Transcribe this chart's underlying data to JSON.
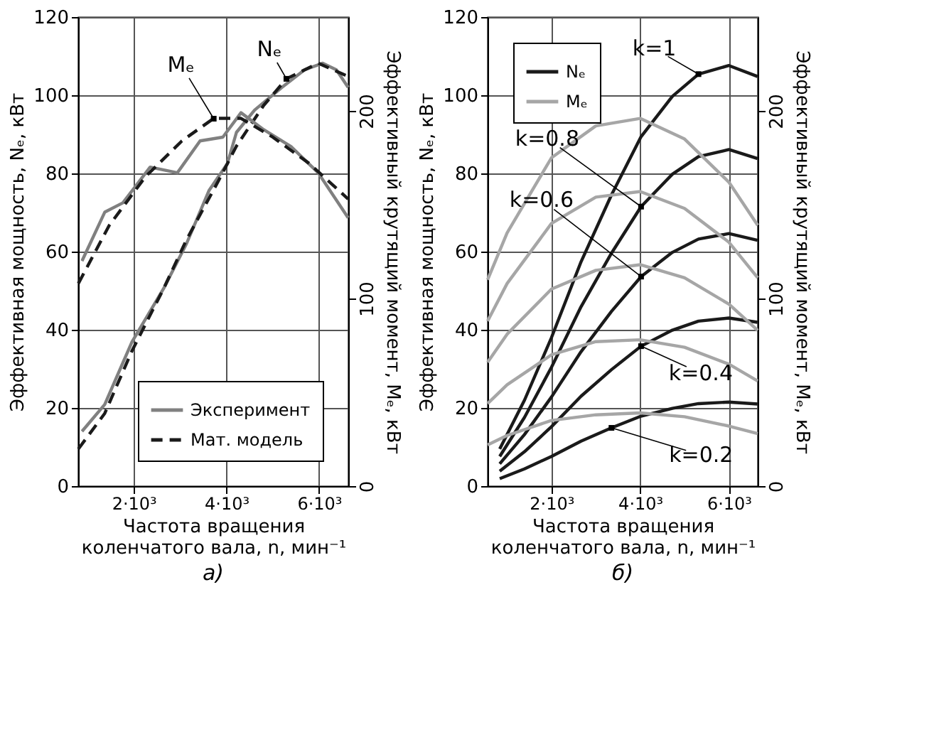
{
  "chart_data": [
    {
      "type": "line",
      "title": "а)",
      "xlabel": "Частота вращения\nколенчатого вала, n, мин⁻¹",
      "ylabel": "Эффективная мощность, Nₑ, кВт",
      "y2label": "Эффективный крутящий момент, Mₑ, кВт",
      "xlim": [
        800,
        6630
      ],
      "xticks": [
        {
          "value": 2000,
          "label": "2·10³"
        },
        {
          "value": 4000,
          "label": "4·10³"
        },
        {
          "value": 6000,
          "label": "6·10³"
        }
      ],
      "ylim": [
        0,
        120
      ],
      "yticks": [
        0,
        20,
        40,
        60,
        80,
        100,
        120
      ],
      "y2lim": [
        0,
        250
      ],
      "y2ticks": [
        0,
        100,
        200
      ],
      "grid": true,
      "legend": "bottom right",
      "annotations": [
        {
          "text": "Mₑ",
          "x": 3725,
          "y": 94
        },
        {
          "text": "Nₑ",
          "x": 5294,
          "y": 104.2
        }
      ],
      "series": [
        {
          "name": "Эксперимент",
          "color": "#808080",
          "line_style": "solid",
          "x": [
            882,
            1373,
            1961,
            2647,
            3137,
            3627,
            4020,
            4216,
            4608,
            5196,
            5686,
            6078,
            6373,
            6627
          ],
          "values": [
            14,
            20.9,
            36.9,
            50.6,
            62,
            75.7,
            82.5,
            90.5,
            96.2,
            102,
            106.5,
            108.2,
            106.5,
            102
          ]
        },
        {
          "name": "Мат. модель",
          "color": "#1a1a1a",
          "line_style": "dashed",
          "x": [
            804,
            1373,
            1961,
            2647,
            3137,
            3823,
            4216,
            4804,
            5294,
            5980,
            6627
          ],
          "values": [
            9.5,
            18.6,
            34.6,
            50.6,
            63,
            78,
            87,
            97.4,
            104.2,
            108.2,
            104.8
          ]
        },
        {
          "color": "#808080",
          "line_style": "solid",
          "axis": "y2",
          "x": [
            882,
            1373,
            1765,
            2353,
            2941,
            3431,
            3922,
            4314,
            4804,
            5392,
            5980,
            6627
          ],
          "values": [
            120,
            146,
            151,
            170,
            167,
            184,
            186,
            199,
            190,
            181,
            167,
            143
          ]
        },
        {
          "color": "#1a1a1a",
          "line_style": "dashed",
          "axis": "y2",
          "x": [
            804,
            1471,
            2255,
            3039,
            3725,
            4314,
            5000,
            5784,
            6627
          ],
          "values": [
            108,
            139,
            165,
            184,
            196,
            196,
            186,
            172,
            153
          ]
        }
      ]
    },
    {
      "type": "line",
      "title": "б)",
      "xlabel": "Частота вращения\nколенчатого вала, n, мин⁻¹",
      "ylabel": "Эффективная мощность, Nₑ, кВт",
      "y2label": "Эффективный крутящий момент, Mₑ, кВт",
      "xlim": [
        560,
        6650
      ],
      "xticks": [
        {
          "value": 2000,
          "label": "2·10³"
        },
        {
          "value": 4000,
          "label": "4·10³"
        },
        {
          "value": 6000,
          "label": "6·10³"
        }
      ],
      "ylim": [
        0,
        120
      ],
      "yticks": [
        0,
        20,
        40,
        60,
        80,
        100,
        120
      ],
      "y2lim": [
        0,
        250
      ],
      "y2ticks": [
        0,
        100,
        200
      ],
      "grid": true,
      "legend": "top left",
      "annotations": [
        {
          "text": "k=1",
          "x": 5314,
          "y": 105.4
        },
        {
          "text": "k=0.8",
          "x": 4020,
          "y": 71.5
        },
        {
          "text": "k=0.6",
          "x": 4020,
          "y": 53.6
        },
        {
          "text": "k=0.4",
          "x": 4020,
          "y": 35.8
        },
        {
          "text": "k=0.2",
          "x": 3353,
          "y": 14.9
        }
      ],
      "series": [
        {
          "name": "Nₑ",
          "color": "#1a1a1a",
          "line_style": "solid",
          "x": [
            833,
            1392,
            2000,
            2667,
            3353,
            4020,
            4725,
            5314,
            6000,
            6647
          ],
          "values": [
            9.5,
            22,
            38,
            57.4,
            74.5,
            89.4,
            99.7,
            105.4,
            107.6,
            104.8
          ]
        },
        {
          "color": "#1a1a1a",
          "line_style": "solid",
          "x": [
            833,
            1392,
            2000,
            2667,
            3353,
            4020,
            4725,
            5314,
            6000,
            6647
          ],
          "values": [
            7.6,
            17.6,
            30.4,
            45.9,
            59.6,
            71.5,
            79.8,
            84.3,
            86.1,
            83.8
          ]
        },
        {
          "color": "#1a1a1a",
          "line_style": "solid",
          "x": [
            833,
            1392,
            2000,
            2667,
            3353,
            4020,
            4725,
            5314,
            6000,
            6647
          ],
          "values": [
            5.7,
            13.2,
            22.8,
            34.4,
            44.7,
            53.6,
            59.8,
            63.2,
            64.6,
            62.9
          ]
        },
        {
          "color": "#1a1a1a",
          "line_style": "solid",
          "x": [
            833,
            1392,
            2000,
            2667,
            3353,
            4020,
            4725,
            5314,
            6000,
            6647
          ],
          "values": [
            3.8,
            8.8,
            15.2,
            23,
            29.8,
            35.8,
            39.9,
            42.2,
            43,
            41.9
          ]
        },
        {
          "color": "#1a1a1a",
          "line_style": "solid",
          "x": [
            833,
            1392,
            2000,
            2667,
            3353,
            4020,
            4725,
            5314,
            6000,
            6647
          ],
          "values": [
            1.9,
            4.4,
            7.6,
            11.5,
            14.9,
            17.9,
            19.9,
            21.1,
            21.5,
            21
          ]
        },
        {
          "name": "Mₑ",
          "color": "#a6a6a6",
          "line_style": "solid",
          "axis": "y2",
          "x": [
            560,
            1000,
            2000,
            3000,
            4000,
            5000,
            6000,
            6650
          ],
          "values": [
            110,
            135,
            175,
            192,
            196,
            185,
            162,
            139
          ]
        },
        {
          "color": "#a6a6a6",
          "line_style": "solid",
          "axis": "y2",
          "x": [
            560,
            1000,
            2000,
            3000,
            4000,
            5000,
            6000,
            6650
          ],
          "values": [
            88,
            108,
            140,
            154,
            157,
            148,
            130,
            111
          ]
        },
        {
          "color": "#a6a6a6",
          "line_style": "solid",
          "axis": "y2",
          "x": [
            560,
            1000,
            2000,
            3000,
            4000,
            5000,
            6000,
            6650
          ],
          "values": [
            66,
            81,
            105,
            115,
            118,
            111,
            97,
            83
          ]
        },
        {
          "color": "#a6a6a6",
          "line_style": "solid",
          "axis": "y2",
          "x": [
            560,
            1000,
            2000,
            3000,
            4000,
            5000,
            6000,
            6650
          ],
          "values": [
            44,
            54,
            70,
            77,
            78,
            74,
            65,
            56
          ]
        },
        {
          "color": "#a6a6a6",
          "line_style": "solid",
          "axis": "y2",
          "x": [
            560,
            1000,
            2000,
            3000,
            4000,
            5000,
            6000,
            6650
          ],
          "values": [
            22,
            27,
            35,
            38,
            39,
            37,
            32,
            28
          ]
        }
      ]
    }
  ]
}
